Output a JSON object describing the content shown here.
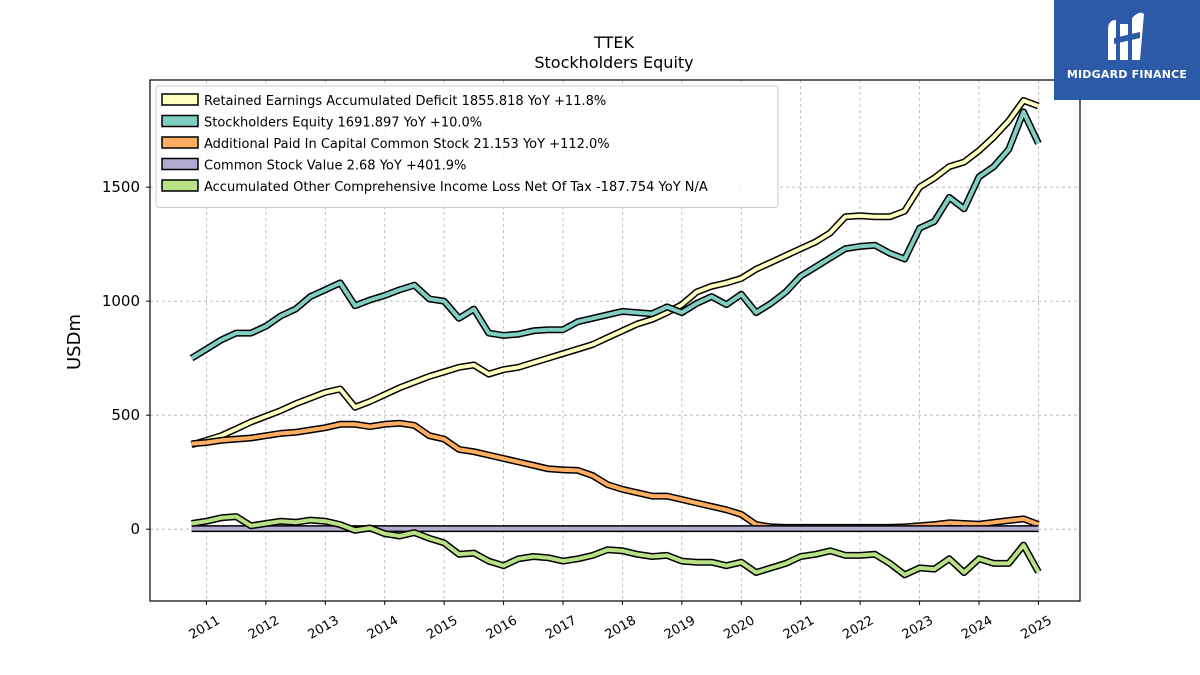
{
  "chart_data": {
    "type": "line",
    "title": "TTEK",
    "subtitle": "Stockholders  Equity",
    "ylabel": "USDm",
    "xlabel": "",
    "xlim": [
      2010.05,
      2025.7
    ],
    "ylim": [
      -315,
      1970
    ],
    "yticks": [
      0,
      500,
      1000,
      1500
    ],
    "xticks": [
      2011,
      2012,
      2013,
      2014,
      2015,
      2016,
      2017,
      2018,
      2019,
      2020,
      2021,
      2022,
      2023,
      2024,
      2025
    ],
    "grid": true,
    "legend_position": "top-left",
    "series": [
      {
        "name": "Retained Earnings Accumulated Deficit",
        "legend": "Retained Earnings Accumulated Deficit  1855.818 YoY +11.8%",
        "color": "#ffffbf",
        "x": [
          2010.75,
          2011.0,
          2011.25,
          2011.5,
          2011.75,
          2012.0,
          2012.25,
          2012.5,
          2012.75,
          2013.0,
          2013.25,
          2013.5,
          2013.75,
          2014.0,
          2014.25,
          2014.5,
          2014.75,
          2015.0,
          2015.25,
          2015.5,
          2015.75,
          2016.0,
          2016.25,
          2016.5,
          2016.75,
          2017.0,
          2017.25,
          2017.5,
          2017.75,
          2018.0,
          2018.25,
          2018.5,
          2018.75,
          2019.0,
          2019.25,
          2019.5,
          2019.75,
          2020.0,
          2020.25,
          2020.5,
          2020.75,
          2021.0,
          2021.25,
          2021.5,
          2021.75,
          2022.0,
          2022.25,
          2022.5,
          2022.75,
          2023.0,
          2023.25,
          2023.5,
          2023.75,
          2024.0,
          2024.25,
          2024.5,
          2024.75,
          2025.0
        ],
        "values": [
          370,
          390,
          410,
          440,
          470,
          495,
          520,
          550,
          575,
          600,
          615,
          535,
          560,
          590,
          620,
          645,
          670,
          690,
          710,
          720,
          680,
          700,
          710,
          730,
          750,
          770,
          790,
          810,
          840,
          870,
          900,
          920,
          950,
          985,
          1040,
          1065,
          1080,
          1100,
          1140,
          1170,
          1200,
          1230,
          1260,
          1300,
          1370,
          1375,
          1370,
          1370,
          1395,
          1500,
          1540,
          1590,
          1610,
          1660,
          1720,
          1790,
          1880,
          1856
        ]
      },
      {
        "name": "Stockholders Equity",
        "legend": "Stockholders Equity  1691.897 YoY +10.0%",
        "color": "#80cdc1",
        "x": [
          2010.75,
          2011.0,
          2011.25,
          2011.5,
          2011.75,
          2012.0,
          2012.25,
          2012.5,
          2012.75,
          2013.0,
          2013.25,
          2013.5,
          2013.75,
          2014.0,
          2014.25,
          2014.5,
          2014.75,
          2015.0,
          2015.25,
          2015.5,
          2015.75,
          2016.0,
          2016.25,
          2016.5,
          2016.75,
          2017.0,
          2017.25,
          2017.5,
          2017.75,
          2018.0,
          2018.25,
          2018.5,
          2018.75,
          2019.0,
          2019.25,
          2019.5,
          2019.75,
          2020.0,
          2020.25,
          2020.5,
          2020.75,
          2021.0,
          2021.25,
          2021.5,
          2021.75,
          2022.0,
          2022.25,
          2022.5,
          2022.75,
          2023.0,
          2023.25,
          2023.5,
          2023.75,
          2024.0,
          2024.25,
          2024.5,
          2024.75,
          2025.0
        ],
        "values": [
          750,
          790,
          830,
          860,
          860,
          890,
          935,
          965,
          1020,
          1050,
          1080,
          980,
          1005,
          1025,
          1050,
          1070,
          1010,
          1000,
          925,
          965,
          860,
          850,
          855,
          870,
          875,
          875,
          910,
          925,
          940,
          955,
          950,
          945,
          975,
          950,
          990,
          1020,
          985,
          1030,
          950,
          990,
          1040,
          1110,
          1150,
          1190,
          1230,
          1240,
          1245,
          1210,
          1185,
          1320,
          1350,
          1455,
          1405,
          1545,
          1590,
          1665,
          1830,
          1692
        ]
      },
      {
        "name": "Additional Paid In Capital Common Stock",
        "legend": "Additional Paid In Capital Common Stock  21.153 YoY +112.0%",
        "color": "#fdae61",
        "x": [
          2010.75,
          2011.0,
          2011.25,
          2011.5,
          2011.75,
          2012.0,
          2012.25,
          2012.5,
          2012.75,
          2013.0,
          2013.25,
          2013.5,
          2013.75,
          2014.0,
          2014.25,
          2014.5,
          2014.75,
          2015.0,
          2015.25,
          2015.5,
          2015.75,
          2016.0,
          2016.25,
          2016.5,
          2016.75,
          2017.0,
          2017.25,
          2017.5,
          2017.75,
          2018.0,
          2018.25,
          2018.5,
          2018.75,
          2019.0,
          2019.25,
          2019.5,
          2019.75,
          2020.0,
          2020.25,
          2020.5,
          2020.75,
          2021.0,
          2021.25,
          2021.5,
          2021.75,
          2022.0,
          2022.25,
          2022.5,
          2022.75,
          2023.0,
          2023.25,
          2023.5,
          2023.75,
          2024.0,
          2024.25,
          2024.5,
          2024.75,
          2025.0
        ],
        "values": [
          375,
          380,
          390,
          395,
          400,
          410,
          420,
          425,
          435,
          445,
          460,
          460,
          450,
          460,
          465,
          455,
          410,
          395,
          350,
          340,
          325,
          310,
          295,
          280,
          265,
          260,
          258,
          235,
          195,
          175,
          160,
          145,
          145,
          130,
          115,
          100,
          85,
          65,
          20,
          10,
          8,
          8,
          8,
          8,
          8,
          8,
          8,
          8,
          10,
          15,
          20,
          28,
          25,
          22,
          30,
          38,
          45,
          21
        ]
      },
      {
        "name": "Common Stock Value",
        "legend": "Common Stock Value  2.68 YoY +401.9%",
        "color": "#b2abd2",
        "x": [
          2010.75,
          2025.0
        ],
        "values": [
          2.68,
          2.68
        ]
      },
      {
        "name": "Accumulated Other Comprehensive Income Loss Net Of Tax",
        "legend": "Accumulated Other Comprehensive Income Loss Net Of Tax  -187.754 YoY N/A",
        "color": "#b8e186",
        "x": [
          2010.75,
          2011.0,
          2011.25,
          2011.5,
          2011.75,
          2012.0,
          2012.25,
          2012.5,
          2012.75,
          2013.0,
          2013.25,
          2013.5,
          2013.75,
          2014.0,
          2014.25,
          2014.5,
          2014.75,
          2015.0,
          2015.25,
          2015.5,
          2015.75,
          2016.0,
          2016.25,
          2016.5,
          2016.75,
          2017.0,
          2017.25,
          2017.5,
          2017.75,
          2018.0,
          2018.25,
          2018.5,
          2018.75,
          2019.0,
          2019.25,
          2019.5,
          2019.75,
          2020.0,
          2020.25,
          2020.5,
          2020.75,
          2021.0,
          2021.25,
          2021.5,
          2021.75,
          2022.0,
          2022.25,
          2022.5,
          2022.75,
          2023.0,
          2023.25,
          2023.5,
          2023.75,
          2024.0,
          2024.25,
          2024.5,
          2024.75,
          2025.0
        ],
        "values": [
          25,
          35,
          50,
          55,
          15,
          25,
          35,
          30,
          40,
          35,
          20,
          -5,
          5,
          -20,
          -30,
          -15,
          -40,
          -60,
          -110,
          -105,
          -140,
          -160,
          -130,
          -120,
          -125,
          -140,
          -130,
          -115,
          -90,
          -95,
          -110,
          -120,
          -115,
          -140,
          -145,
          -145,
          -160,
          -145,
          -190,
          -170,
          -150,
          -120,
          -110,
          -95,
          -115,
          -115,
          -110,
          -150,
          -200,
          -170,
          -175,
          -130,
          -190,
          -130,
          -150,
          -150,
          -70,
          -188
        ]
      }
    ]
  },
  "logo": {
    "text": "MIDGARD FINANCE"
  }
}
